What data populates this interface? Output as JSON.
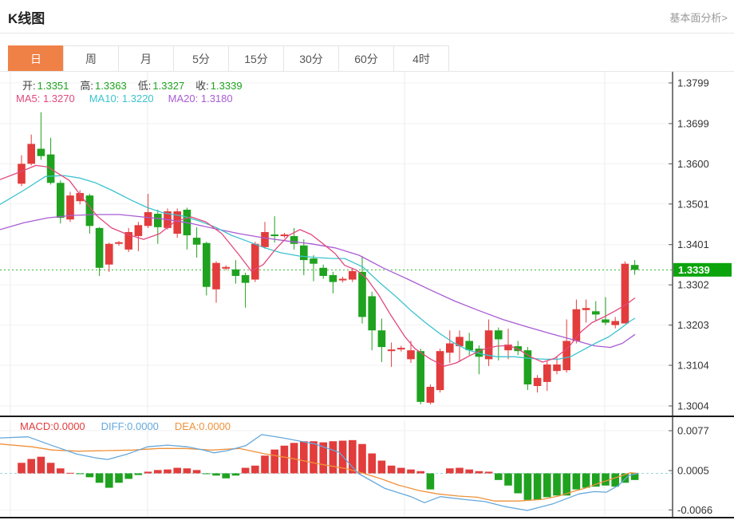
{
  "header": {
    "title": "K线图",
    "link": "基本面分析>"
  },
  "tabs": {
    "items": [
      "日",
      "周",
      "月",
      "5分",
      "15分",
      "30分",
      "60分",
      "4时"
    ],
    "active_index": 0
  },
  "legend": {
    "open_label": "开:",
    "open_value": "1.3351",
    "high_label": "高:",
    "high_value": "1.3363",
    "low_label": "低:",
    "low_value": "1.3327",
    "close_label": "收:",
    "close_value": "1.3339",
    "ma5": "MA5: 1.3270",
    "ma10": "MA10: 1.3220",
    "ma20": "MA20: 1.3180"
  },
  "macd_legend": {
    "macd": "MACD:0.0000",
    "diff": "DIFF:0.0000",
    "dea": "DEA:0.0000"
  },
  "colors": {
    "up": "#e23c3c",
    "down": "#1fa21f",
    "ma5": "#e2487e",
    "ma10": "#3cc3ce",
    "ma20": "#a95bd4",
    "diff_line": "#64a8dc",
    "dea_line": "#ef913b",
    "badge": "#0ca40c",
    "badge_text": "#ffffff",
    "tab_active": "#f08146",
    "dotted": "#2eb82e",
    "grid_h": "#f2f2f2",
    "grid_v": "#ececec",
    "axis": "#1a1a1a",
    "tick_text": "#333333",
    "macd_zero_dash": "#9fd4da"
  },
  "chart_data": {
    "type": "candlestick_with_macd",
    "main": {
      "title": "K线图",
      "y_ticks": [
        "1.3799",
        "1.3699",
        "1.3600",
        "1.3501",
        "1.3401",
        "1.3302",
        "1.3203",
        "1.3104",
        "1.3004"
      ],
      "y_range": [
        1.3004,
        1.3799
      ],
      "last_price": "1.3339",
      "dotted_line_price": 1.3339,
      "candles_ohlc": [
        [
          1.3551,
          1.3621,
          1.3545,
          1.36
        ],
        [
          1.36,
          1.3672,
          1.3596,
          1.3649
        ],
        [
          1.3637,
          1.3727,
          1.361,
          1.3619
        ],
        [
          1.3623,
          1.3664,
          1.3549,
          1.3553
        ],
        [
          1.3553,
          1.3559,
          1.3453,
          1.3467
        ],
        [
          1.3463,
          1.3531,
          1.3457,
          1.3522
        ],
        [
          1.3508,
          1.3535,
          1.35,
          1.3528
        ],
        [
          1.3522,
          1.3526,
          1.3428,
          1.3447
        ],
        [
          1.3442,
          1.3444,
          1.3324,
          1.3344
        ],
        [
          1.3352,
          1.3406,
          1.3334,
          1.3403
        ],
        [
          1.3403,
          1.341,
          1.3398,
          1.3407
        ],
        [
          1.3389,
          1.3442,
          1.3383,
          1.3432
        ],
        [
          1.3422,
          1.3457,
          1.3385,
          1.3449
        ],
        [
          1.3447,
          1.3526,
          1.3442,
          1.3481
        ],
        [
          1.3477,
          1.3487,
          1.3403,
          1.3444
        ],
        [
          1.3442,
          1.349,
          1.3438,
          1.3483
        ],
        [
          1.3428,
          1.349,
          1.3418,
          1.3483
        ],
        [
          1.3487,
          1.3492,
          1.3389,
          1.3424
        ],
        [
          1.3418,
          1.3444,
          1.3369,
          1.3401
        ],
        [
          1.3405,
          1.3408,
          1.3276,
          1.3297
        ],
        [
          1.3291,
          1.336,
          1.3258,
          1.3356
        ],
        [
          1.3342,
          1.335,
          1.3338,
          1.3346
        ],
        [
          1.334,
          1.3363,
          1.3305,
          1.3324
        ],
        [
          1.3326,
          1.3332,
          1.3246,
          1.3307
        ],
        [
          1.3315,
          1.3408,
          1.3309,
          1.3403
        ],
        [
          1.3395,
          1.3457,
          1.3391,
          1.3432
        ],
        [
          1.3426,
          1.3471,
          1.3406,
          1.3422
        ],
        [
          1.3422,
          1.343,
          1.3418,
          1.3426
        ],
        [
          1.3422,
          1.3442,
          1.3389,
          1.3403
        ],
        [
          1.3399,
          1.3414,
          1.3326,
          1.3363
        ],
        [
          1.3367,
          1.3375,
          1.3311,
          1.3354
        ],
        [
          1.3344,
          1.3352,
          1.3317,
          1.3324
        ],
        [
          1.3326,
          1.3334,
          1.3281,
          1.3309
        ],
        [
          1.3313,
          1.3322,
          1.3308,
          1.3317
        ],
        [
          1.3315,
          1.3344,
          1.3309,
          1.3336
        ],
        [
          1.3334,
          1.3373,
          1.3207,
          1.3223
        ],
        [
          1.3274,
          1.3285,
          1.3141,
          1.319
        ],
        [
          1.319,
          1.3219,
          1.3112,
          1.3149
        ],
        [
          1.3139,
          1.316,
          1.31,
          1.3143
        ],
        [
          1.3143,
          1.3152,
          1.3138,
          1.3147
        ],
        [
          1.3119,
          1.3164,
          1.311,
          1.3141
        ],
        [
          1.3139,
          1.3145,
          1.3008,
          1.3014
        ],
        [
          1.3012,
          1.3057,
          1.3008,
          1.3051
        ],
        [
          1.3043,
          1.3145,
          1.3037,
          1.3139
        ],
        [
          1.3135,
          1.319,
          1.311,
          1.3158
        ],
        [
          1.3151,
          1.319,
          1.3112,
          1.3174
        ],
        [
          1.3164,
          1.3184,
          1.3129,
          1.3141
        ],
        [
          1.3145,
          1.3153,
          1.3082,
          1.3125
        ],
        [
          1.3119,
          1.3217,
          1.3102,
          1.319
        ],
        [
          1.319,
          1.3197,
          1.3116,
          1.3168
        ],
        [
          1.3141,
          1.3194,
          1.3119,
          1.3155
        ],
        [
          1.3151,
          1.3164,
          1.3129,
          1.3139
        ],
        [
          1.3141,
          1.3149,
          1.3043,
          1.3057
        ],
        [
          1.3053,
          1.308,
          1.3037,
          1.3073
        ],
        [
          1.3063,
          1.3114,
          1.3041,
          1.3106
        ],
        [
          1.309,
          1.3125,
          1.3082,
          1.3106
        ],
        [
          1.3092,
          1.3217,
          1.3086,
          1.3164
        ],
        [
          1.3164,
          1.3266,
          1.3158,
          1.3242
        ],
        [
          1.324,
          1.3266,
          1.3209,
          1.3245
        ],
        [
          1.3237,
          1.3262,
          1.3213,
          1.3229
        ],
        [
          1.3217,
          1.3272,
          1.3203,
          1.3209
        ],
        [
          1.3203,
          1.3223,
          1.3195,
          1.3213
        ],
        [
          1.3207,
          1.336,
          1.3207,
          1.3354
        ],
        [
          1.3351,
          1.3363,
          1.3327,
          1.3339
        ]
      ],
      "ma5_last": 1.327,
      "ma10_last": 1.322,
      "ma20_last": 1.318,
      "ma5_points": [
        [
          0,
          1.3561
        ],
        [
          25,
          1.358
        ],
        [
          45,
          1.3596
        ],
        [
          60,
          1.3592
        ],
        [
          87,
          1.3559
        ],
        [
          105,
          1.3512
        ],
        [
          122,
          1.3471
        ],
        [
          140,
          1.3442
        ],
        [
          160,
          1.3426
        ],
        [
          180,
          1.3414
        ],
        [
          200,
          1.3428
        ],
        [
          220,
          1.3459
        ],
        [
          240,
          1.3469
        ],
        [
          258,
          1.3457
        ],
        [
          278,
          1.3428
        ],
        [
          300,
          1.3375
        ],
        [
          315,
          1.3336
        ],
        [
          330,
          1.3352
        ],
        [
          345,
          1.3389
        ],
        [
          362,
          1.3424
        ],
        [
          376,
          1.3438
        ],
        [
          390,
          1.3426
        ],
        [
          405,
          1.3403
        ],
        [
          420,
          1.3379
        ],
        [
          432,
          1.335
        ],
        [
          447,
          1.3338
        ],
        [
          460,
          1.3317
        ],
        [
          475,
          1.3276
        ],
        [
          490,
          1.3227
        ],
        [
          507,
          1.3176
        ],
        [
          520,
          1.3145
        ],
        [
          540,
          1.3119
        ],
        [
          557,
          1.3102
        ],
        [
          572,
          1.311
        ],
        [
          588,
          1.3127
        ],
        [
          605,
          1.3143
        ],
        [
          622,
          1.3151
        ],
        [
          638,
          1.3153
        ],
        [
          652,
          1.3141
        ],
        [
          665,
          1.3125
        ],
        [
          680,
          1.3112
        ],
        [
          695,
          1.3121
        ],
        [
          712,
          1.3147
        ],
        [
          728,
          1.3186
        ],
        [
          742,
          1.3209
        ],
        [
          757,
          1.3223
        ],
        [
          772,
          1.3239
        ],
        [
          785,
          1.3254
        ],
        [
          796,
          1.327
        ]
      ],
      "ma10_points": [
        [
          0,
          1.35
        ],
        [
          30,
          1.3535
        ],
        [
          57,
          1.3569
        ],
        [
          80,
          1.3571
        ],
        [
          100,
          1.3565
        ],
        [
          120,
          1.3553
        ],
        [
          140,
          1.3535
        ],
        [
          165,
          1.351
        ],
        [
          185,
          1.3492
        ],
        [
          205,
          1.3479
        ],
        [
          230,
          1.3471
        ],
        [
          250,
          1.3459
        ],
        [
          270,
          1.3444
        ],
        [
          290,
          1.3424
        ],
        [
          312,
          1.3408
        ],
        [
          332,
          1.3393
        ],
        [
          352,
          1.3381
        ],
        [
          375,
          1.3373
        ],
        [
          398,
          1.3369
        ],
        [
          418,
          1.3367
        ],
        [
          432,
          1.3367
        ],
        [
          455,
          1.3346
        ],
        [
          475,
          1.3309
        ],
        [
          497,
          1.3272
        ],
        [
          515,
          1.3239
        ],
        [
          532,
          1.3211
        ],
        [
          550,
          1.3184
        ],
        [
          568,
          1.316
        ],
        [
          585,
          1.3143
        ],
        [
          605,
          1.3131
        ],
        [
          623,
          1.3125
        ],
        [
          645,
          1.3125
        ],
        [
          663,
          1.3121
        ],
        [
          683,
          1.3119
        ],
        [
          700,
          1.3119
        ],
        [
          715,
          1.3125
        ],
        [
          730,
          1.3141
        ],
        [
          748,
          1.316
        ],
        [
          763,
          1.3174
        ],
        [
          778,
          1.3195
        ],
        [
          790,
          1.3213
        ],
        [
          796,
          1.322
        ]
      ],
      "ma20_points": [
        [
          0,
          1.3438
        ],
        [
          30,
          1.3455
        ],
        [
          60,
          1.3467
        ],
        [
          90,
          1.3473
        ],
        [
          120,
          1.3475
        ],
        [
          150,
          1.3475
        ],
        [
          180,
          1.3469
        ],
        [
          210,
          1.3463
        ],
        [
          240,
          1.3453
        ],
        [
          270,
          1.344
        ],
        [
          300,
          1.3428
        ],
        [
          330,
          1.3418
        ],
        [
          360,
          1.341
        ],
        [
          390,
          1.3403
        ],
        [
          420,
          1.3393
        ],
        [
          450,
          1.3375
        ],
        [
          480,
          1.3344
        ],
        [
          510,
          1.3317
        ],
        [
          540,
          1.3289
        ],
        [
          570,
          1.3262
        ],
        [
          600,
          1.3239
        ],
        [
          630,
          1.3217
        ],
        [
          660,
          1.3199
        ],
        [
          690,
          1.3182
        ],
        [
          720,
          1.3166
        ],
        [
          745,
          1.3152
        ],
        [
          765,
          1.3148
        ],
        [
          780,
          1.3158
        ],
        [
          796,
          1.318
        ]
      ]
    },
    "macd": {
      "y_ticks": [
        "0.0077",
        "0.0005",
        "-0.0066"
      ],
      "y_tick_values": [
        0.0077,
        0.0005,
        -0.0066
      ],
      "histogram": [
        0.0019,
        0.0026,
        0.003,
        0.0019,
        0.0009,
        0.0001,
        -0.0001,
        -0.0007,
        -0.0017,
        -0.0026,
        -0.0017,
        -0.001,
        -0.0003,
        0.0003,
        0.0006,
        0.0007,
        0.001,
        0.0009,
        0.0006,
        -0.0001,
        -0.0004,
        -0.0009,
        -0.0004,
        0.001,
        0.0014,
        0.0032,
        0.0043,
        0.005,
        0.0055,
        0.0058,
        0.0058,
        0.0056,
        0.0058,
        0.0059,
        0.006,
        0.0053,
        0.0036,
        0.0023,
        0.0014,
        0.001,
        0.0007,
        0.0004,
        -0.0029,
        0.0,
        0.0009,
        0.001,
        0.0007,
        0.0004,
        0.0003,
        -0.0012,
        -0.0022,
        -0.0036,
        -0.0048,
        -0.0048,
        -0.0043,
        -0.004,
        -0.004,
        -0.0029,
        -0.0026,
        -0.0024,
        -0.0022,
        -0.0024,
        -0.0017,
        -0.0012
      ],
      "diff_points": [
        [
          0,
          0.0064
        ],
        [
          35,
          0.0066
        ],
        [
          66,
          0.005
        ],
        [
          96,
          0.0035
        ],
        [
          120,
          0.0028
        ],
        [
          135,
          0.0025
        ],
        [
          160,
          0.0035
        ],
        [
          185,
          0.0048
        ],
        [
          210,
          0.0051
        ],
        [
          235,
          0.0048
        ],
        [
          255,
          0.0042
        ],
        [
          268,
          0.0037
        ],
        [
          285,
          0.0041
        ],
        [
          308,
          0.005
        ],
        [
          328,
          0.007
        ],
        [
          355,
          0.0064
        ],
        [
          395,
          0.0053
        ],
        [
          425,
          0.0038
        ],
        [
          449,
          0.0
        ],
        [
          482,
          -0.0027
        ],
        [
          515,
          -0.0042
        ],
        [
          532,
          -0.0053
        ],
        [
          552,
          -0.0042
        ],
        [
          581,
          -0.0047
        ],
        [
          608,
          -0.0051
        ],
        [
          633,
          -0.006
        ],
        [
          661,
          -0.0067
        ],
        [
          693,
          -0.0055
        ],
        [
          726,
          -0.0037
        ],
        [
          745,
          -0.0033
        ],
        [
          760,
          -0.0034
        ],
        [
          775,
          -0.0022
        ],
        [
          788,
          -0.0004
        ],
        [
          800,
          0.0
        ]
      ],
      "dea_points": [
        [
          0,
          0.0053
        ],
        [
          40,
          0.0048
        ],
        [
          66,
          0.0042
        ],
        [
          99,
          0.004
        ],
        [
          132,
          0.0041
        ],
        [
          166,
          0.0042
        ],
        [
          199,
          0.0045
        ],
        [
          232,
          0.0045
        ],
        [
          265,
          0.0042
        ],
        [
          300,
          0.0045
        ],
        [
          333,
          0.0035
        ],
        [
          366,
          0.0027
        ],
        [
          400,
          0.0017
        ],
        [
          432,
          0.0009
        ],
        [
          456,
          0.0
        ],
        [
          480,
          -0.0011
        ],
        [
          499,
          -0.0021
        ],
        [
          525,
          -0.0031
        ],
        [
          548,
          -0.0037
        ],
        [
          575,
          -0.0041
        ],
        [
          598,
          -0.0043
        ],
        [
          620,
          -0.005
        ],
        [
          650,
          -0.005
        ],
        [
          680,
          -0.0047
        ],
        [
          700,
          -0.0041
        ],
        [
          720,
          -0.0032
        ],
        [
          733,
          -0.0027
        ],
        [
          750,
          -0.0018
        ],
        [
          765,
          -0.0011
        ],
        [
          780,
          -0.0004
        ],
        [
          790,
          0.0001
        ],
        [
          800,
          0.0
        ]
      ]
    }
  }
}
